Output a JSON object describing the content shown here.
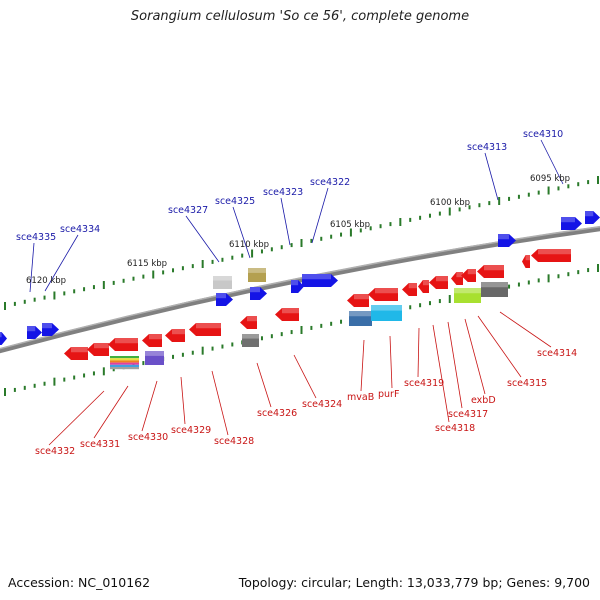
{
  "title": "Sorangium cellulosum 'So ce 56', complete genome",
  "footer": {
    "accession": "Accession: NC_010162",
    "topology": "Topology: circular; Length: 13,033,779 bp; Genes: 9,700"
  },
  "colors": {
    "forward": "#1414e6",
    "reverse": "#e61414",
    "backbone": "#808080",
    "ticks": "#2a7a2a",
    "forward_label": "#1a1aa8",
    "reverse_label": "#c81414",
    "kbp_label": "#222222"
  },
  "scale_labels": [
    "6095 kbp",
    "6100 kbp",
    "6105 kbp",
    "6110 kbp",
    "6115 kbp",
    "6120 kbp"
  ],
  "forward_labels": [
    "sce4310",
    "sce4313",
    "sce4322",
    "sce4323",
    "sce4325",
    "sce4327",
    "sce4334",
    "sce4335"
  ],
  "reverse_labels": [
    "sce4314",
    "sce4315",
    "exbD",
    "sce4317",
    "sce4318",
    "sce4319",
    "purF",
    "mvaB",
    "sce4324",
    "sce4326",
    "sce4328",
    "sce4329",
    "sce4330",
    "sce4331",
    "sce4332"
  ]
}
